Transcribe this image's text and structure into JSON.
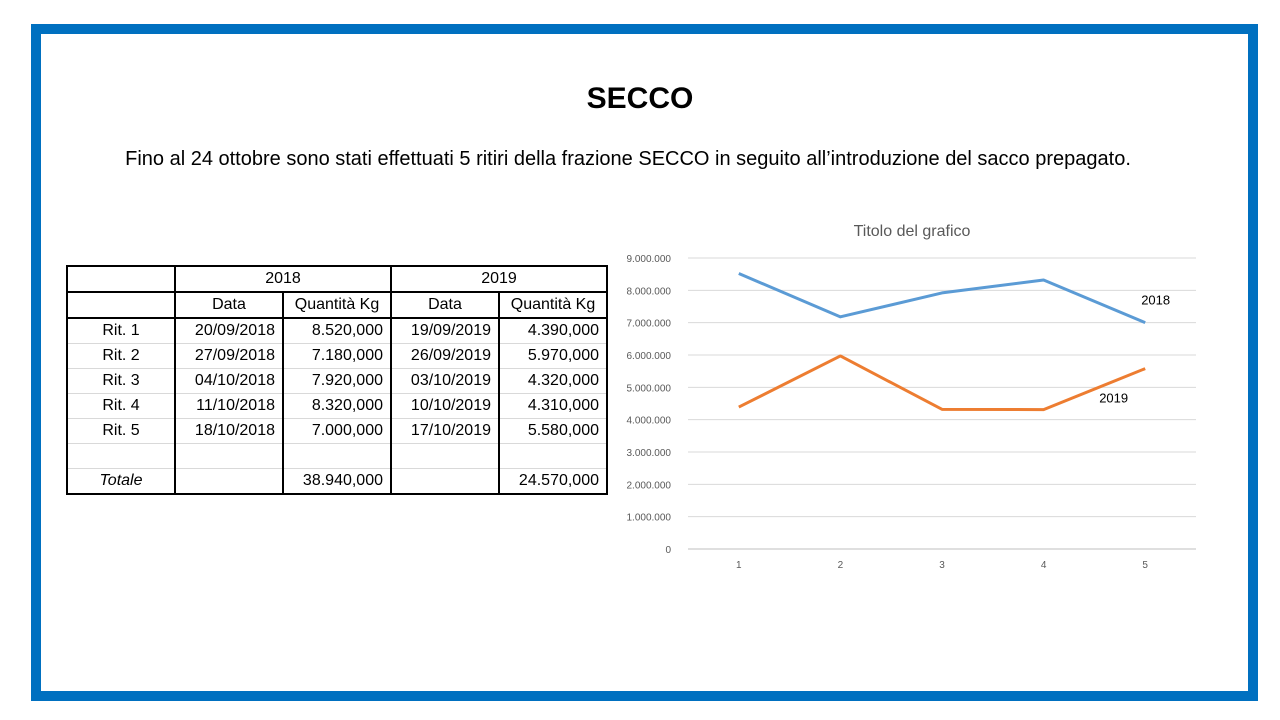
{
  "slide": {
    "title": "SECCO",
    "subtitle": "Fino al 24 ottobre sono stati effettuati 5 ritiri della frazione SECCO in seguito all’introduzione del sacco prepagato."
  },
  "table": {
    "years": [
      "2018",
      "2019"
    ],
    "col_headers": [
      "Data",
      "Quantità Kg",
      "Data",
      "Quantità Kg"
    ],
    "rows": [
      {
        "label": "Rit. 1",
        "d2018": "20/09/2018",
        "q2018": "8.520,000",
        "d2019": "19/09/2019",
        "q2019": "4.390,000"
      },
      {
        "label": "Rit. 2",
        "d2018": "27/09/2018",
        "q2018": "7.180,000",
        "d2019": "26/09/2019",
        "q2019": "5.970,000"
      },
      {
        "label": "Rit. 3",
        "d2018": "04/10/2018",
        "q2018": "7.920,000",
        "d2019": "03/10/2019",
        "q2019": "4.320,000"
      },
      {
        "label": "Rit. 4",
        "d2018": "11/10/2018",
        "q2018": "8.320,000",
        "d2019": "10/10/2019",
        "q2019": "4.310,000"
      },
      {
        "label": "Rit. 5",
        "d2018": "18/10/2018",
        "q2018": "7.000,000",
        "d2019": "17/10/2019",
        "q2019": "5.580,000"
      }
    ],
    "total": {
      "label": "Totale",
      "q2018": "38.940,000",
      "q2019": "24.570,000"
    }
  },
  "chart_data": {
    "type": "line",
    "title": "Titolo del grafico",
    "categories": [
      "1",
      "2",
      "3",
      "4",
      "5"
    ],
    "series": [
      {
        "name": "2018",
        "values": [
          8520000,
          7180000,
          7920000,
          8320000,
          7000000
        ],
        "color": "#5b9bd5"
      },
      {
        "name": "2019",
        "values": [
          4390000,
          5970000,
          4320000,
          4310000,
          5580000
        ],
        "color": "#ed7d31"
      }
    ],
    "ylim": [
      0,
      9000000
    ],
    "yticks": [
      "0",
      "1.000.000",
      "2.000.000",
      "3.000.000",
      "4.000.000",
      "5.000.000",
      "6.000.000",
      "7.000.000",
      "8.000.000",
      "9.000.000"
    ],
    "grid": true,
    "legend": "data labels at line ends"
  }
}
